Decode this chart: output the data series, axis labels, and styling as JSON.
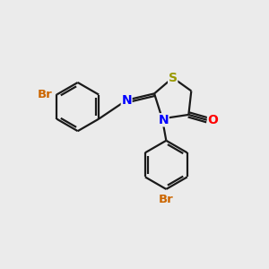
{
  "bg_color": "#ebebeb",
  "colors": {
    "S": "#999900",
    "N": "#0000ff",
    "O": "#ff0000",
    "Br": "#cc6600",
    "bond": "#1a1a1a"
  },
  "bond_lw": 1.6,
  "font_size_heavy": 10,
  "font_size_br": 9.5
}
